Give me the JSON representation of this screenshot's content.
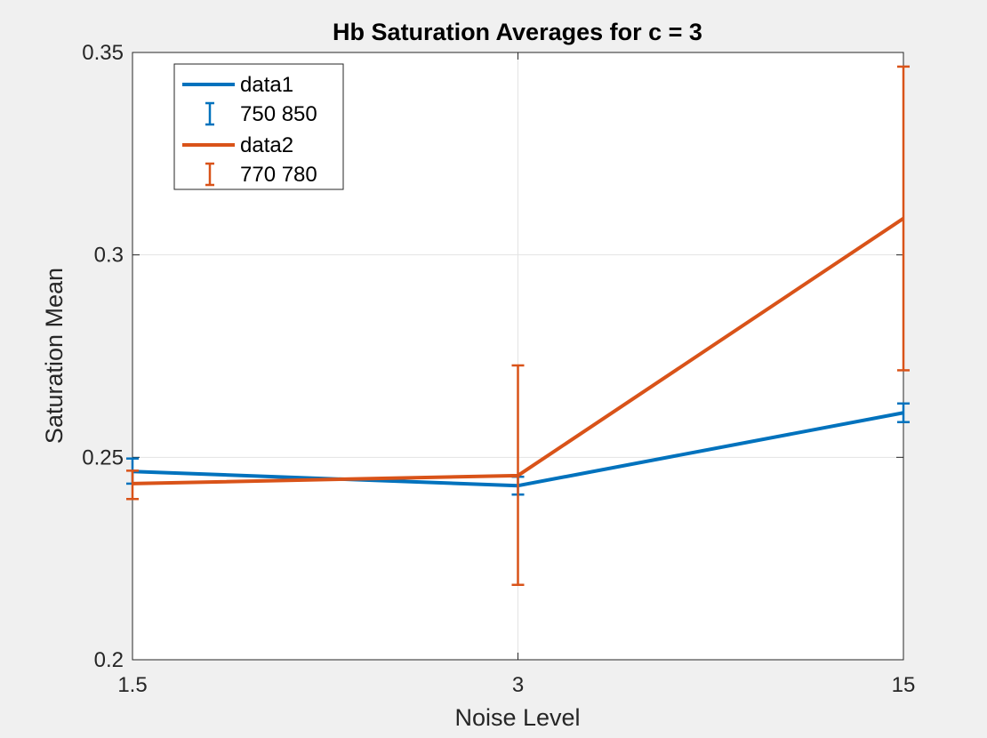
{
  "chart_data": {
    "type": "line",
    "title": "Hb Saturation Averages for c = 3",
    "xlabel": "Noise Level",
    "ylabel": "Saturation Mean",
    "x_scale": "categorical",
    "categories": [
      "1.5",
      "3",
      "15"
    ],
    "ylim": [
      0.2,
      0.35
    ],
    "yticks": [
      0.2,
      0.25,
      0.3,
      0.35
    ],
    "ytick_labels": [
      "0.2",
      "0.25",
      "0.3",
      "0.35"
    ],
    "grid": true,
    "legend_position": "top-left",
    "series": [
      {
        "name": "data1",
        "errorbar_name": "750  850",
        "color": "#0072BD",
        "values": [
          0.2465,
          0.243,
          0.261
        ],
        "err_low": [
          0.2435,
          0.2408,
          0.2587
        ],
        "err_high": [
          0.2497,
          0.2452,
          0.2633
        ]
      },
      {
        "name": "data2",
        "errorbar_name": "770  780",
        "color": "#D95319",
        "values": [
          0.2435,
          0.2455,
          0.309
        ],
        "err_low": [
          0.2397,
          0.2185,
          0.2715
        ],
        "err_high": [
          0.2467,
          0.2727,
          0.3465
        ]
      }
    ]
  }
}
